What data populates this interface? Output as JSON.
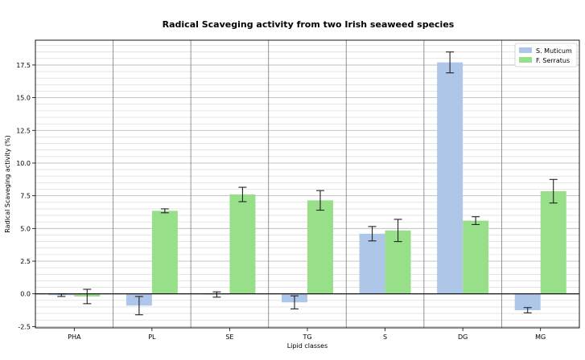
{
  "chart_data": {
    "type": "bar",
    "title": "Radical Scaveging activity from two Irish seaweed species",
    "xlabel": "Lipid classes",
    "ylabel": "Radical Scaveging activity (%)",
    "categories": [
      "PHA",
      "PL",
      "SE",
      "TG",
      "S",
      "DG",
      "MG"
    ],
    "series": [
      {
        "name": "S. Muticum",
        "color": "#aec7e8",
        "values": [
          -0.1,
          -0.9,
          -0.05,
          -0.65,
          4.6,
          17.7,
          -1.25
        ],
        "errors": [
          0.1,
          0.7,
          0.2,
          0.5,
          0.55,
          0.8,
          0.2
        ]
      },
      {
        "name": "F. Serratus",
        "color": "#98df8a",
        "values": [
          -0.2,
          6.35,
          7.6,
          7.15,
          4.85,
          5.6,
          7.85
        ],
        "errors": [
          0.55,
          0.15,
          0.55,
          0.75,
          0.85,
          0.3,
          0.9
        ]
      }
    ],
    "ylim": [
      -2.6,
      19.4
    ],
    "yticks": [
      "-2.5",
      "0.0",
      "2.5",
      "5.0",
      "7.5",
      "10.0",
      "12.5",
      "15.0",
      "17.5"
    ],
    "ytick_values": [
      -2.5,
      0,
      2.5,
      5,
      7.5,
      10,
      12.5,
      15,
      17.5
    ],
    "minor_grid_step": 0.5,
    "grid": true,
    "legend_position": "top-right"
  }
}
